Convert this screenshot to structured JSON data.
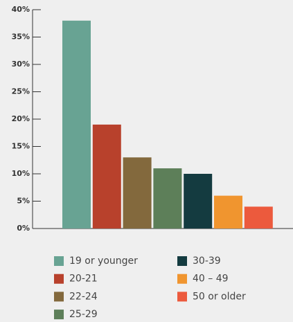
{
  "chart_data": {
    "type": "bar",
    "categories": [
      "19 or younger",
      "20-21",
      "22-24",
      "25-29",
      "30-39",
      "40 – 49",
      "50 or older"
    ],
    "values": [
      38,
      19,
      13,
      11,
      10,
      6,
      4
    ],
    "colors": [
      "#68a393",
      "#b8412c",
      "#83693d",
      "#5d7f59",
      "#143b40",
      "#f0952f",
      "#ec5a3d"
    ],
    "ylim": [
      0,
      40
    ],
    "yticks": [
      {
        "value": 0,
        "label": "0%"
      },
      {
        "value": 5,
        "label": "5%"
      },
      {
        "value": 10,
        "label": "10%"
      },
      {
        "value": 15,
        "label": "15%"
      },
      {
        "value": 20,
        "label": "20%"
      },
      {
        "value": 25,
        "label": "25%"
      },
      {
        "value": 30,
        "label": "30%"
      },
      {
        "value": 35,
        "label": "35%"
      },
      {
        "value": 40,
        "label": "40%"
      }
    ]
  }
}
